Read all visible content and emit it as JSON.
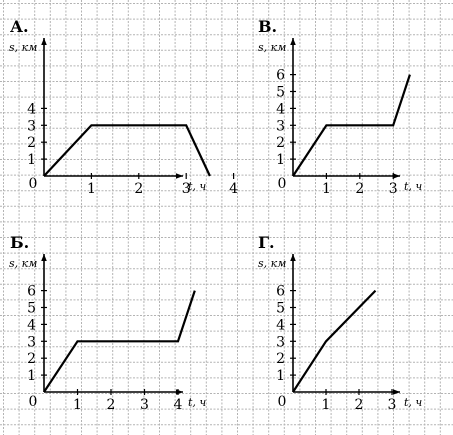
{
  "chart_data": [
    {
      "type": "line",
      "title": "А.",
      "ylabel": "s, км",
      "xlabel": "t, ч",
      "x_ticks": [
        "1",
        "2",
        "3",
        "4"
      ],
      "y_ticks": [
        "1",
        "2",
        "3",
        "4"
      ],
      "origin_label": "0",
      "xlim": [
        0,
        5.5
      ],
      "ylim": [
        0,
        6.8
      ],
      "grid": true,
      "series": [
        {
          "x": [
            0,
            1,
            3,
            3.5
          ],
          "y": [
            0,
            3,
            3,
            0
          ]
        }
      ]
    },
    {
      "type": "line",
      "title": "В.",
      "ylabel": "s, км",
      "xlabel": "t, ч",
      "x_ticks": [
        "1",
        "2",
        "3"
      ],
      "y_ticks": [
        "1",
        "2",
        "3",
        "4",
        "5",
        "6"
      ],
      "origin_label": "0",
      "xlim": [
        0,
        4.5
      ],
      "ylim": [
        0,
        6.8
      ],
      "grid": true,
      "series": [
        {
          "x": [
            0,
            1,
            3,
            3.5
          ],
          "y": [
            0,
            3,
            3,
            6
          ]
        }
      ]
    },
    {
      "type": "line",
      "title": "Б.",
      "ylabel": "s, км",
      "xlabel": "t, ч",
      "x_ticks": [
        "1",
        "2",
        "3",
        "4"
      ],
      "y_ticks": [
        "1",
        "2",
        "3",
        "4",
        "5",
        "6"
      ],
      "origin_label": "0",
      "xlim": [
        0,
        5.5
      ],
      "ylim": [
        0,
        6.8
      ],
      "grid": true,
      "series": [
        {
          "x": [
            0,
            1,
            4,
            4.5
          ],
          "y": [
            0,
            3,
            3,
            6
          ]
        }
      ]
    },
    {
      "type": "line",
      "title": "Г.",
      "ylabel": "s, км",
      "xlabel": "t, ч",
      "x_ticks": [
        "1",
        "2",
        "3"
      ],
      "y_ticks": [
        "1",
        "2",
        "3",
        "4",
        "5",
        "6"
      ],
      "origin_label": "0",
      "xlim": [
        0,
        4.5
      ],
      "ylim": [
        0,
        6.8
      ],
      "grid": true,
      "series": [
        {
          "x": [
            0,
            1,
            2.5
          ],
          "y": [
            0,
            3,
            6
          ]
        }
      ]
    }
  ]
}
